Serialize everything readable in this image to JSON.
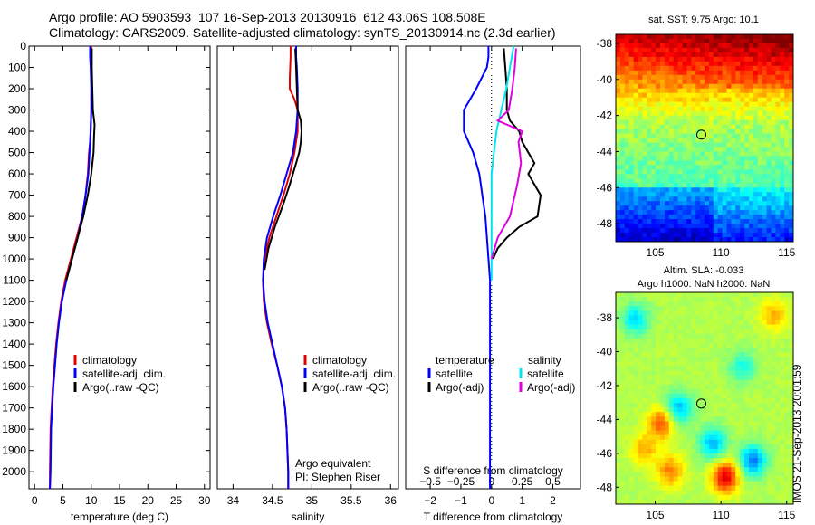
{
  "header": {
    "line1": "Argo profile: AO 5903593_107 16-Sep-2013 20130916_612 43.06S 108.508E",
    "line2": "Climatology: CARS2009. Satellite-adjusted climatology: synTS_20130914.nc (2.3d earlier)"
  },
  "stamp": "IMOS 21-Sep-2013 20:01:59",
  "colors": {
    "climatology": "#e00000",
    "satellite": "#0000ff",
    "argo": "#000000",
    "sal_satellite": "#00e5ee",
    "sal_argo": "#e000e0"
  },
  "chart_data": [
    {
      "id": "temp",
      "type": "line",
      "xlabel": "temperature (deg C)",
      "ylabel": "",
      "xlim": [
        -1,
        31
      ],
      "ylim": [
        2080,
        0
      ],
      "xticks": [
        0,
        5,
        10,
        15,
        20,
        25,
        30
      ],
      "xticklabels": [
        "0",
        "5",
        "10",
        "15",
        "20",
        "25",
        "30"
      ],
      "yticks": [
        0,
        100,
        200,
        300,
        400,
        500,
        600,
        700,
        800,
        900,
        1000,
        1100,
        1200,
        1300,
        1400,
        1500,
        1600,
        1700,
        1800,
        1900,
        2000
      ],
      "yticklabels": [
        "0",
        "100",
        "200",
        "300",
        "400",
        "500",
        "600",
        "700",
        "800",
        "900",
        "1000",
        "1100",
        "1200",
        "1300",
        "1400",
        "1500",
        "1600",
        "1700",
        "1800",
        "1900",
        "2000"
      ],
      "legend": [
        "climatology",
        "satellite-adj. clim.",
        "Argo(..raw -QC)"
      ],
      "annotation": [],
      "series": [
        {
          "name": "climatology",
          "color": "#e00000",
          "x": [
            10,
            10,
            10,
            10,
            10,
            9.9,
            9.8,
            9.6,
            9.4,
            9.0,
            8.4,
            7.4,
            6.4,
            5.4,
            4.7,
            4.2,
            3.8,
            3.5,
            3.2,
            3.0,
            2.8,
            2.7,
            2.7
          ],
          "y": [
            0,
            50,
            100,
            200,
            300,
            400,
            450,
            500,
            600,
            700,
            800,
            900,
            1000,
            1100,
            1200,
            1300,
            1400,
            1500,
            1600,
            1700,
            1800,
            2000,
            2080
          ]
        },
        {
          "name": "satellite-adj. clim.",
          "color": "#0000ff",
          "x": [
            9.8,
            9.8,
            9.9,
            10,
            10,
            9.9,
            9.7,
            9.5,
            9.0,
            8.4,
            7.6,
            6.6,
            5.6,
            4.8,
            4.3,
            3.9,
            3.6,
            3.3,
            3.1,
            2.9,
            2.8,
            2.7
          ],
          "y": [
            0,
            50,
            100,
            200,
            300,
            400,
            500,
            600,
            700,
            800,
            900,
            1000,
            1100,
            1200,
            1300,
            1400,
            1500,
            1600,
            1700,
            1800,
            2000,
            2080
          ]
        },
        {
          "name": "Argo(..raw -QC)",
          "color": "#000000",
          "x": [
            10.1,
            10.1,
            10.2,
            10.3,
            10.6,
            10.5,
            10.4,
            10.0,
            9.4,
            8.6,
            7.6,
            6.6,
            5.6
          ],
          "y": [
            10,
            100,
            200,
            300,
            370,
            420,
            500,
            600,
            700,
            800,
            900,
            1000,
            1100
          ]
        }
      ]
    },
    {
      "id": "sal",
      "type": "line",
      "xlabel": "salinity",
      "ylabel": "",
      "xlim": [
        33.8,
        36.1
      ],
      "ylim": [
        2080,
        0
      ],
      "xticks": [
        34,
        34.5,
        35,
        35.5,
        36
      ],
      "xticklabels": [
        "34",
        "34.5",
        "35",
        "35.5",
        "36"
      ],
      "yticks": [],
      "yticklabels": [],
      "legend": [
        "climatology",
        "satellite-adj. clim.",
        "Argo(..raw -QC)"
      ],
      "annotation": [
        "Argo equivalent",
        "PI: Stephen Riser"
      ],
      "series": [
        {
          "name": "climatology",
          "color": "#e00000",
          "x": [
            34.73,
            34.73,
            34.72,
            34.72,
            34.78,
            34.82,
            34.82,
            34.78,
            34.72,
            34.64,
            34.55,
            34.46,
            34.4,
            34.38,
            34.39,
            34.43,
            34.49,
            34.56,
            34.62,
            34.66,
            34.68,
            34.7,
            34.7
          ],
          "y": [
            0,
            50,
            150,
            200,
            250,
            300,
            400,
            500,
            600,
            700,
            800,
            900,
            1000,
            1100,
            1200,
            1300,
            1400,
            1500,
            1600,
            1700,
            1800,
            2000,
            2080
          ]
        },
        {
          "name": "satellite-adj. clim.",
          "color": "#0000ff",
          "x": [
            34.8,
            34.8,
            34.81,
            34.82,
            34.82,
            34.8,
            34.76,
            34.68,
            34.6,
            34.51,
            34.43,
            34.39,
            34.38,
            34.4,
            34.44,
            34.5,
            34.56,
            34.62,
            34.66,
            34.68,
            34.7,
            34.7
          ],
          "y": [
            0,
            50,
            100,
            200,
            300,
            400,
            500,
            600,
            700,
            800,
            900,
            1000,
            1100,
            1200,
            1300,
            1400,
            1500,
            1600,
            1700,
            1800,
            2000,
            2080
          ]
        },
        {
          "name": "Argo(..raw -QC)",
          "color": "#000000",
          "x": [
            34.79,
            34.8,
            34.81,
            34.82,
            34.86,
            34.87,
            34.86,
            34.84,
            34.8,
            34.72,
            34.63,
            34.53,
            34.45,
            34.4
          ],
          "y": [
            10,
            100,
            200,
            300,
            350,
            400,
            450,
            500,
            550,
            650,
            750,
            850,
            950,
            1050
          ]
        }
      ]
    },
    {
      "id": "diff",
      "type": "line",
      "xlabel": "T difference from climatology",
      "xlabel_top": "S difference from climatology",
      "ylabel": "",
      "xlim": [
        -2.8,
        2.9
      ],
      "ylim": [
        2080,
        0
      ],
      "xticks": [
        -2,
        -1,
        0,
        1,
        2
      ],
      "xticklabels": [
        "−2",
        "−1",
        "0",
        "1",
        "2"
      ],
      "xticks_top": [
        -0.5,
        -0.25,
        0,
        0.25,
        0.5
      ],
      "xticklabels_top": [
        "−0.5",
        "−0.25",
        "0",
        "0.25",
        "0.5"
      ],
      "s_scale": 4,
      "yticks": [],
      "yticklabels": [],
      "legend_t_title": "temperature",
      "legend_s_title": "salinity",
      "legend_t": [
        "satellite",
        "Argo(-adj)"
      ],
      "legend_s": [
        "satellite",
        "Argo(-adj)"
      ],
      "annotation": [],
      "series": [
        {
          "name": "T satellite",
          "color": "#0000ff",
          "x": [
            -0.1,
            -0.1,
            -0.15,
            -0.5,
            -0.9,
            -0.9,
            -0.6,
            -0.4,
            -0.3,
            -0.2,
            -0.15,
            -0.1,
            -0.05,
            -0.05,
            -0.05,
            -0.05,
            -0.05
          ],
          "y": [
            0,
            50,
            100,
            200,
            300,
            400,
            500,
            600,
            700,
            800,
            900,
            1000,
            1100,
            1300,
            1500,
            1800,
            2080
          ]
        },
        {
          "name": "T Argo(-adj)",
          "color": "#000000",
          "x": [
            0.4,
            0.45,
            0.5,
            0.5,
            0.6,
            0.9,
            1.0,
            1.2,
            1.4,
            1.2,
            1.6,
            1.5,
            0.9,
            0.5,
            0.2,
            0.05
          ],
          "y": [
            10,
            100,
            200,
            300,
            350,
            400,
            450,
            500,
            550,
            600,
            700,
            800,
            850,
            900,
            950,
            1000
          ]
        },
        {
          "name": "S satellite",
          "color": "#00e5ee",
          "x": [
            0.18,
            0.15,
            0.12,
            0.08,
            0.04,
            0.02,
            0.0,
            0.0,
            0.0,
            0.0,
            0.0,
            0.0
          ],
          "y": [
            0,
            100,
            200,
            300,
            400,
            500,
            600,
            700,
            800,
            900,
            1000,
            1100
          ]
        },
        {
          "name": "S Argo(-adj)",
          "color": "#e000e0",
          "x": [
            0.2,
            0.19,
            0.17,
            0.14,
            0.05,
            0.25,
            0.22,
            0.23,
            0.24,
            0.21,
            0.15,
            0.05,
            0.0
          ],
          "y": [
            10,
            100,
            200,
            300,
            350,
            400,
            450,
            500,
            550,
            650,
            800,
            900,
            1000
          ]
        }
      ]
    },
    {
      "id": "sst_map",
      "type": "heatmap",
      "title": "sat. SST: 9.75 Argo: 10.1",
      "xlim": [
        102,
        115.5
      ],
      "ylim": [
        -49,
        -37.5
      ],
      "xticks": [
        105,
        110,
        115
      ],
      "xticklabels": [
        "105",
        "110",
        "115"
      ],
      "yticks": [
        -38,
        -40,
        -42,
        -44,
        -46,
        -48
      ],
      "yticklabels": [
        "-38",
        "-40",
        "-42",
        "-44",
        "-46",
        "-48"
      ],
      "argo_position": [
        108.508,
        -43.06
      ]
    },
    {
      "id": "sla_map",
      "type": "heatmap",
      "title": "Altim. SLA: -0.033",
      "subtitle": "Argo h1000: NaN h2000: NaN",
      "xlim": [
        102,
        115.5
      ],
      "ylim": [
        -49,
        -36.5
      ],
      "xticks": [
        105,
        110,
        115
      ],
      "xticklabels": [
        "105",
        "110",
        "115"
      ],
      "yticks": [
        -38,
        -40,
        -42,
        -44,
        -46,
        -48
      ],
      "yticklabels": [
        "-38",
        "-40",
        "-42",
        "-44",
        "-46",
        "-48"
      ],
      "argo_position": [
        108.508,
        -43.06
      ]
    }
  ]
}
